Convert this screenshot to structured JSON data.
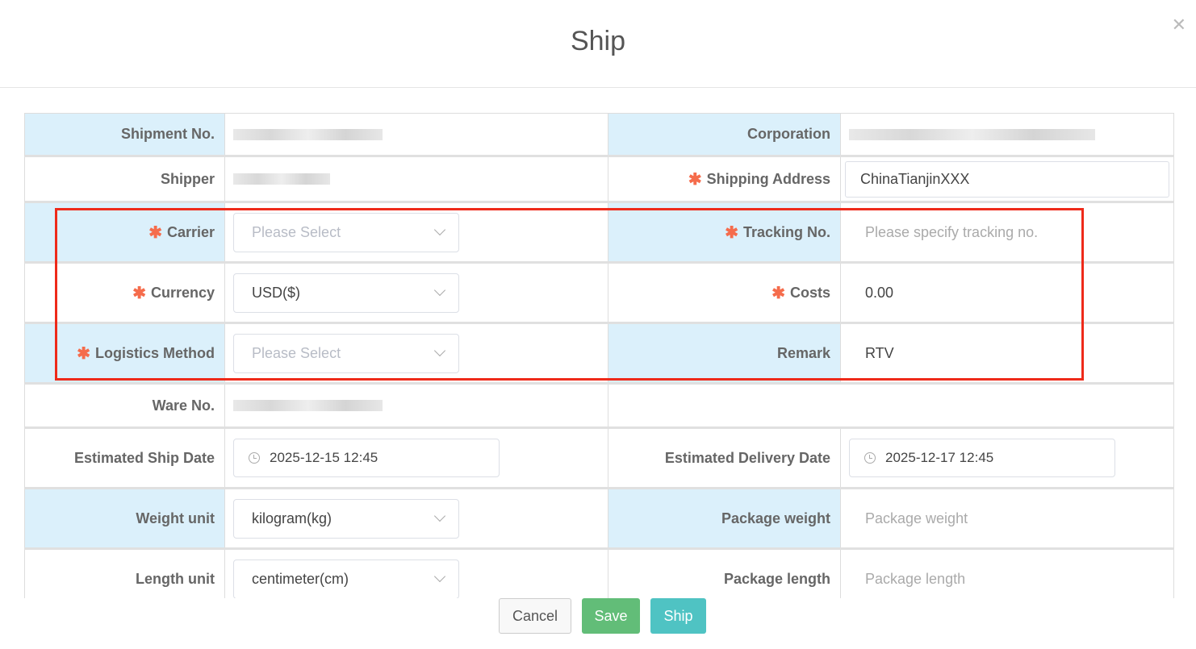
{
  "dialog": {
    "title": "Ship",
    "close_icon": "close-icon"
  },
  "fields": {
    "shipment_no": {
      "label": "Shipment No."
    },
    "corporation": {
      "label": "Corporation"
    },
    "shipper": {
      "label": "Shipper"
    },
    "shipping_address": {
      "label": "Shipping Address",
      "value": "ChinaTianjinXXX"
    },
    "carrier": {
      "label": "Carrier",
      "placeholder": "Please Select"
    },
    "tracking_no": {
      "label": "Tracking No.",
      "placeholder": "Please specify tracking no."
    },
    "currency": {
      "label": "Currency",
      "value": "USD($)"
    },
    "costs": {
      "label": "Costs",
      "value": "0.00"
    },
    "logistics_method": {
      "label": "Logistics Method",
      "placeholder": "Please Select"
    },
    "remark": {
      "label": "Remark",
      "value": "RTV"
    },
    "ware_no": {
      "label": "Ware No."
    },
    "est_ship_date": {
      "label": "Estimated Ship Date",
      "value": "2025-12-15 12:45"
    },
    "est_delivery_date": {
      "label": "Estimated Delivery Date",
      "value": "2025-12-17 12:45"
    },
    "weight_unit": {
      "label": "Weight unit",
      "value": "kilogram(kg)"
    },
    "package_weight": {
      "label": "Package weight",
      "placeholder": "Package weight"
    },
    "length_unit": {
      "label": "Length unit",
      "value": "centimeter(cm)"
    },
    "package_length": {
      "label": "Package length",
      "placeholder": "Package length"
    }
  },
  "required_mark": "✱",
  "colors": {
    "label_bg": "#dbf0fb",
    "required": "#f56c4c",
    "highlight": "#ee2a1a",
    "save": "#62bd78",
    "ship": "#4fc3c3"
  },
  "footer": {
    "cancel": "Cancel",
    "save": "Save",
    "ship": "Ship"
  }
}
